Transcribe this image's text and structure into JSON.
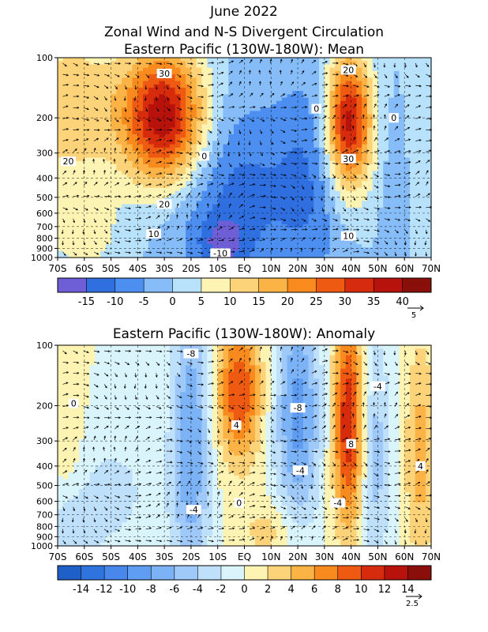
{
  "figure": {
    "title_line1": "June 2022",
    "title_line2": "Zonal Wind and N-S Divergent Circulation"
  },
  "chart_data": [
    {
      "type": "heatmap",
      "title": "Eastern Pacific (130W-180W): Mean",
      "x_ticks": [
        "70S",
        "60S",
        "50S",
        "40S",
        "30S",
        "20S",
        "10S",
        "EQ",
        "10N",
        "20N",
        "30N",
        "40N",
        "50N",
        "60N",
        "70N"
      ],
      "y_ticks": [
        100,
        200,
        300,
        400,
        500,
        600,
        700,
        800,
        900,
        1000
      ],
      "y_scale": "log (pressure, reversed)",
      "colorbar": {
        "levels": [
          -15,
          -10,
          -5,
          0,
          5,
          10,
          15,
          20,
          25,
          30,
          35,
          40
        ],
        "labels": [
          "-15",
          "-10",
          "-5",
          "0",
          "5",
          "10",
          "15",
          "20",
          "25",
          "30",
          "35",
          "40"
        ],
        "colors": [
          "#6f5fd6",
          "#2f6fe0",
          "#4d8ff0",
          "#86bdf8",
          "#b8e2fb",
          "#fdf3b2",
          "#fdd37a",
          "#fcb346",
          "#f88a1e",
          "#ee5a12",
          "#d62c0d",
          "#b7120b",
          "#8a0e0a"
        ]
      },
      "vector_scale": "5",
      "contour_labels": [
        {
          "text": "30",
          "lat": -30,
          "p": 120
        },
        {
          "text": "20",
          "lat": -66,
          "p": 330
        },
        {
          "text": "20",
          "lat": -30,
          "p": 540
        },
        {
          "text": "10",
          "lat": -34,
          "p": 760
        },
        {
          "text": "0",
          "lat": -15,
          "p": 310
        },
        {
          "text": "-10",
          "lat": -9,
          "p": 950
        },
        {
          "text": "0",
          "lat": 27,
          "p": 180
        },
        {
          "text": "20",
          "lat": 39,
          "p": 115
        },
        {
          "text": "30",
          "lat": 39,
          "p": 320
        },
        {
          "text": "10",
          "lat": 39,
          "p": 780
        },
        {
          "text": "0",
          "lat": 56,
          "p": 200
        }
      ],
      "centers": [
        {
          "lat": -30,
          "p": 200,
          "value": 40,
          "sx": 11,
          "sp": 0.55
        },
        {
          "lat": 39,
          "p": 210,
          "value": 38,
          "sx": 6,
          "sp": 0.55
        },
        {
          "lat": -65,
          "p": 180,
          "value": 14,
          "sx": 14,
          "sp": 0.7
        },
        {
          "lat": -60,
          "p": 800,
          "value": 6,
          "sx": 12,
          "sp": 0.35
        },
        {
          "lat": -4,
          "p": 500,
          "value": -12,
          "sx": 18,
          "sp": 0.8
        },
        {
          "lat": -8,
          "p": 850,
          "value": -10,
          "sx": 6,
          "sp": 0.2
        },
        {
          "lat": 25,
          "p": 400,
          "value": -8,
          "sx": 9,
          "sp": 0.9
        },
        {
          "lat": 58,
          "p": 400,
          "value": -5,
          "sx": 4,
          "sp": 0.7
        },
        {
          "lat": 66,
          "p": 300,
          "value": 5,
          "sx": 6,
          "sp": 0.8
        }
      ]
    },
    {
      "type": "heatmap",
      "title": "Eastern Pacific (130W-180W): Anomaly",
      "x_ticks": [
        "70S",
        "60S",
        "50S",
        "40S",
        "30S",
        "20S",
        "10S",
        "EQ",
        "10N",
        "20N",
        "30N",
        "40N",
        "50N",
        "60N",
        "70N"
      ],
      "y_ticks": [
        100,
        200,
        300,
        400,
        500,
        600,
        700,
        800,
        900,
        1000
      ],
      "y_scale": "log (pressure, reversed)",
      "colorbar": {
        "levels": [
          -14,
          -12,
          -10,
          -8,
          -6,
          -4,
          -2,
          0,
          2,
          4,
          6,
          8,
          10,
          12,
          14
        ],
        "labels": [
          "-14",
          "-12",
          "-10",
          "-8",
          "-6",
          "-4",
          "-2",
          "0",
          "2",
          "4",
          "6",
          "8",
          "10",
          "12",
          "14"
        ],
        "colors": [
          "#1f5fc8",
          "#2f74de",
          "#4888ec",
          "#5e9df2",
          "#7cb3f6",
          "#9ec9f8",
          "#bfe0fa",
          "#d9f4fb",
          "#fdf3b2",
          "#fdd37a",
          "#fcb346",
          "#f88a1e",
          "#ee5a12",
          "#d62c0d",
          "#b7120b",
          "#8a0e0a"
        ]
      },
      "vector_scale": "2.5",
      "contour_labels": [
        {
          "text": "-8",
          "lat": -20,
          "p": 110
        },
        {
          "text": "0",
          "lat": -64,
          "p": 195
        },
        {
          "text": "4",
          "lat": -3,
          "p": 250
        },
        {
          "text": "-8",
          "lat": 20,
          "p": 205
        },
        {
          "text": "-4",
          "lat": 50,
          "p": 160
        },
        {
          "text": "8",
          "lat": 40,
          "p": 310
        },
        {
          "text": "-4",
          "lat": 21,
          "p": 420
        },
        {
          "text": "4",
          "lat": 66,
          "p": 400
        },
        {
          "text": "-4",
          "lat": 35,
          "p": 610
        },
        {
          "text": "-4",
          "lat": -19,
          "p": 660
        },
        {
          "text": "0",
          "lat": -2,
          "p": 610
        }
      ],
      "centers": [
        {
          "lat": -2,
          "p": 170,
          "value": 10,
          "sx": 6,
          "sp": 0.55
        },
        {
          "lat": 39,
          "p": 240,
          "value": 12,
          "sx": 4,
          "sp": 0.85
        },
        {
          "lat": -20,
          "p": 300,
          "value": -8,
          "sx": 5,
          "sp": 1.2
        },
        {
          "lat": 20,
          "p": 220,
          "value": -9,
          "sx": 6,
          "sp": 0.9
        },
        {
          "lat": 49,
          "p": 350,
          "value": -5,
          "sx": 4,
          "sp": 1.0
        },
        {
          "lat": 66,
          "p": 350,
          "value": 5,
          "sx": 4,
          "sp": 0.9
        },
        {
          "lat": -50,
          "p": 550,
          "value": -2.5,
          "sx": 14,
          "sp": 0.6
        },
        {
          "lat": -65,
          "p": 850,
          "value": -3,
          "sx": 6,
          "sp": 0.3
        },
        {
          "lat": 10,
          "p": 850,
          "value": 3,
          "sx": 8,
          "sp": 0.25
        },
        {
          "lat": -66,
          "p": 250,
          "value": 2.5,
          "sx": 4,
          "sp": 0.6
        }
      ]
    }
  ]
}
